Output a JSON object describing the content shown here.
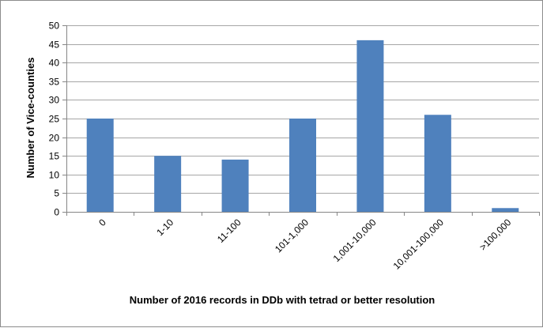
{
  "chart_data": {
    "type": "bar",
    "title": "",
    "xlabel": "Number of 2016 records in DDb with tetrad or better resolution",
    "ylabel": "Number of Vice-counties",
    "categories": [
      "0",
      "1-10",
      "11-100",
      "101-1,000",
      "1,001-10,000",
      "10,001-100,000",
      ">100,000"
    ],
    "values": [
      25,
      15,
      14,
      25,
      46,
      26,
      1
    ],
    "ylim": [
      0,
      50
    ],
    "yticks": [
      0,
      5,
      10,
      15,
      20,
      25,
      30,
      35,
      40,
      45,
      50
    ],
    "grid": true,
    "legend": "none",
    "bar_color": "#4f81bd",
    "grid_color": "#a6a6a6",
    "axis_color": "#868686"
  }
}
